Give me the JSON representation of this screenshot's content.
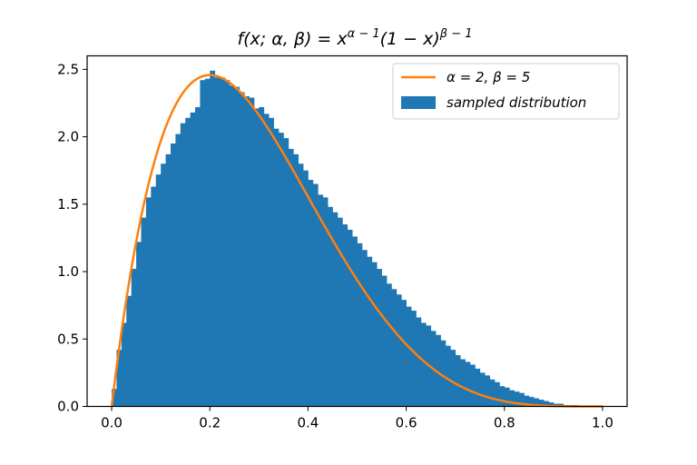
{
  "chart_data": {
    "type": "bar",
    "title": "f(x; α, β) = x^{α − 1}(1 − x)^{β − 1}",
    "title_parts": {
      "lead": "f(x; α, β) = x",
      "sup1": "α − 1",
      "mid": "(1 − x)",
      "sup2": "β − 1"
    },
    "xlabel": "",
    "ylabel": "",
    "xlim": [
      -0.05,
      1.05
    ],
    "ylim": [
      0.0,
      2.6
    ],
    "xticks": [
      0.0,
      0.2,
      0.4,
      0.6,
      0.8,
      1.0
    ],
    "xtick_labels": [
      "0.0",
      "0.2",
      "0.4",
      "0.6",
      "0.8",
      "1.0"
    ],
    "yticks": [
      0.0,
      0.5,
      1.0,
      1.5,
      2.0,
      2.5
    ],
    "ytick_labels": [
      "0.0",
      "0.5",
      "1.0",
      "1.5",
      "2.0",
      "2.5"
    ],
    "grid": false,
    "legend": {
      "placement": "top-right",
      "entries": [
        {
          "label": "α = 2, β = 5",
          "kind": "line",
          "color": "#ff7f0e"
        },
        {
          "label": "sampled distribution",
          "kind": "patch",
          "color": "#1f77b4",
          "italic": true
        }
      ]
    },
    "series": [
      {
        "name": "sampled distribution",
        "kind": "histogram",
        "color": "#1f77b4",
        "bin_start": 0.0,
        "bin_width": 0.01,
        "values": [
          0.13,
          0.42,
          0.62,
          0.82,
          1.02,
          1.22,
          1.4,
          1.55,
          1.63,
          1.72,
          1.8,
          1.87,
          1.95,
          2.02,
          2.1,
          2.14,
          2.18,
          2.22,
          2.42,
          2.43,
          2.49,
          2.44,
          2.44,
          2.42,
          2.38,
          2.37,
          2.33,
          2.3,
          2.29,
          2.21,
          2.22,
          2.17,
          2.14,
          2.06,
          2.03,
          1.99,
          1.91,
          1.87,
          1.8,
          1.75,
          1.68,
          1.65,
          1.57,
          1.55,
          1.48,
          1.44,
          1.4,
          1.35,
          1.31,
          1.26,
          1.21,
          1.16,
          1.11,
          1.07,
          1.02,
          0.97,
          0.91,
          0.87,
          0.83,
          0.79,
          0.74,
          0.71,
          0.66,
          0.62,
          0.6,
          0.56,
          0.53,
          0.49,
          0.45,
          0.42,
          0.38,
          0.35,
          0.33,
          0.31,
          0.28,
          0.25,
          0.23,
          0.2,
          0.18,
          0.15,
          0.14,
          0.12,
          0.11,
          0.1,
          0.08,
          0.07,
          0.06,
          0.05,
          0.04,
          0.03,
          0.02,
          0.02,
          0.01,
          0.01,
          0.01,
          0.0,
          0.0,
          0.0,
          0.0,
          0.0
        ]
      },
      {
        "name": "α = 2, β = 5",
        "kind": "line",
        "color": "#ff7f0e",
        "function": "beta_pdf",
        "alpha": 2,
        "beta": 5,
        "x_range": [
          0.0,
          1.0
        ]
      }
    ]
  }
}
